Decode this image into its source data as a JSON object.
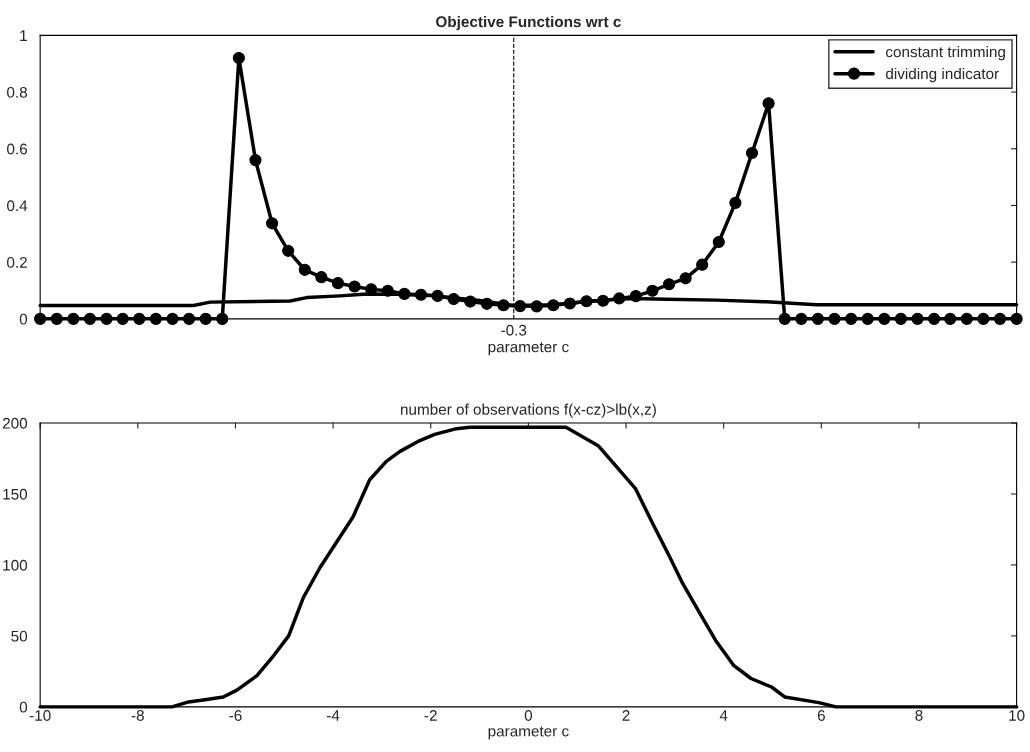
{
  "chart_data": [
    {
      "type": "line",
      "title": "Objective Functions wrt c",
      "xlabel": "parameter c",
      "xlim": [
        -10,
        10
      ],
      "tick_labels": "y",
      "ylim": [
        0,
        1
      ],
      "yticks": [
        0,
        0.2,
        0.4,
        0.6,
        0.8,
        1
      ],
      "grid": false,
      "legend": "top right",
      "ref_lines": [
        {
          "axis": "x",
          "value": -0.3,
          "label": "-0.3",
          "color": "#000000",
          "line_style": "dashed"
        }
      ],
      "series": [
        {
          "name": "constant trimming",
          "color": "#000000",
          "marker": "none",
          "x": [
            -10,
            -6.86,
            -6.52,
            -4.88,
            -4.54,
            -3.86,
            -3.38,
            -2.84,
            -2.0,
            -1.0,
            -0.3,
            0.5,
            1.0,
            1.5,
            2.15,
            2.83,
            3.85,
            4.88,
            5.9,
            10
          ],
          "values": [
            0.047,
            0.047,
            0.059,
            0.063,
            0.075,
            0.081,
            0.087,
            0.088,
            0.082,
            0.065,
            0.047,
            0.05,
            0.058,
            0.066,
            0.072,
            0.069,
            0.066,
            0.06,
            0.05,
            0.05
          ]
        },
        {
          "name": "dividing indicator",
          "color": "#000000",
          "marker": "circle",
          "x": [
            -10,
            -9.66,
            -9.32,
            -8.98,
            -8.64,
            -8.31,
            -7.97,
            -7.63,
            -7.29,
            -6.95,
            -6.61,
            -6.27,
            -5.93,
            -5.59,
            -5.25,
            -4.92,
            -4.58,
            -4.24,
            -3.9,
            -3.56,
            -3.22,
            -2.88,
            -2.54,
            -2.2,
            -1.86,
            -1.53,
            -1.19,
            -0.85,
            -0.51,
            -0.17,
            0.17,
            0.51,
            0.85,
            1.19,
            1.53,
            1.86,
            2.2,
            2.54,
            2.88,
            3.22,
            3.56,
            3.9,
            4.24,
            4.58,
            4.92,
            5.25,
            5.59,
            5.93,
            6.27,
            6.61,
            6.95,
            7.29,
            7.63,
            7.97,
            8.31,
            8.64,
            8.98,
            9.32,
            9.66,
            10
          ],
          "values": [
            0,
            0,
            0,
            0,
            0,
            0,
            0,
            0,
            0,
            0,
            0,
            0,
            0.92,
            0.56,
            0.337,
            0.24,
            0.173,
            0.147,
            0.126,
            0.114,
            0.104,
            0.099,
            0.088,
            0.085,
            0.081,
            0.07,
            0.061,
            0.053,
            0.048,
            0.045,
            0.044,
            0.048,
            0.054,
            0.062,
            0.064,
            0.072,
            0.08,
            0.099,
            0.122,
            0.143,
            0.191,
            0.271,
            0.409,
            0.585,
            0.76,
            0,
            0,
            0,
            0,
            0,
            0,
            0,
            0,
            0,
            0,
            0,
            0,
            0,
            0,
            0
          ]
        }
      ]
    },
    {
      "type": "line",
      "title": "number of observations f(x-cz)>lb(x,z)",
      "xlabel": "parameter c",
      "xlim": [
        -10,
        10
      ],
      "xticks": [
        -10,
        -8,
        -6,
        -4,
        -2,
        0,
        2,
        4,
        6,
        8,
        10
      ],
      "ylim": [
        0,
        200
      ],
      "yticks": [
        0,
        50,
        100,
        150,
        200
      ],
      "grid": false,
      "legend": false,
      "series": [
        {
          "color": "#000000",
          "marker": "none",
          "x": [
            -10,
            -7.3,
            -6.96,
            -6.59,
            -6.25,
            -5.97,
            -5.56,
            -5.22,
            -4.91,
            -4.61,
            -4.27,
            -3.93,
            -3.59,
            -3.25,
            -2.91,
            -2.63,
            -2.26,
            -1.92,
            -1.47,
            -1.2,
            0,
            0.77,
            1.43,
            2.19,
            2.52,
            2.89,
            3.16,
            3.51,
            3.85,
            4.21,
            4.56,
            4.98,
            5.25,
            5.95,
            6.3,
            10
          ],
          "values": [
            0,
            0,
            3.5,
            5.2,
            7,
            11.8,
            22,
            36,
            50,
            77,
            98,
            116,
            134,
            160,
            173,
            180,
            187,
            192,
            196,
            197,
            197,
            197,
            184,
            154,
            131,
            106,
            87,
            66,
            46,
            29,
            20,
            14,
            7,
            3,
            0,
            0
          ]
        }
      ]
    }
  ]
}
